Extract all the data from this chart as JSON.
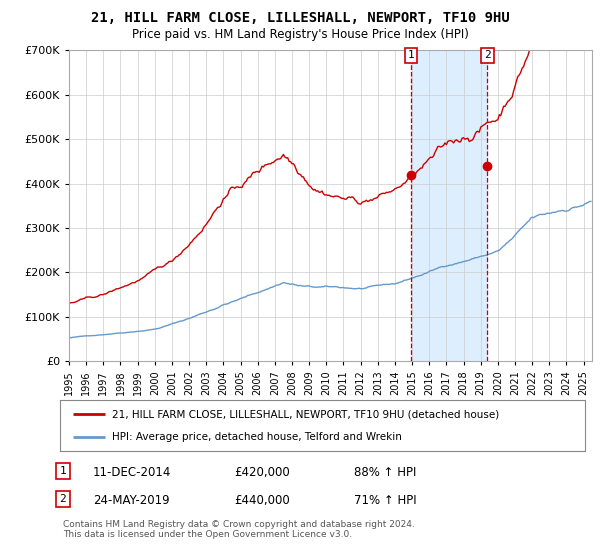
{
  "title": "21, HILL FARM CLOSE, LILLESHALL, NEWPORT, TF10 9HU",
  "subtitle": "Price paid vs. HM Land Registry's House Price Index (HPI)",
  "legend_line1": "21, HILL FARM CLOSE, LILLESHALL, NEWPORT, TF10 9HU (detached house)",
  "legend_line2": "HPI: Average price, detached house, Telford and Wrekin",
  "annotation1_date": "11-DEC-2014",
  "annotation1_price": "£420,000",
  "annotation1_hpi": "88% ↑ HPI",
  "annotation2_date": "24-MAY-2019",
  "annotation2_price": "£440,000",
  "annotation2_hpi": "71% ↑ HPI",
  "footer": "Contains HM Land Registry data © Crown copyright and database right 2024.\nThis data is licensed under the Open Government Licence v3.0.",
  "red_color": "#cc0000",
  "blue_color": "#6699cc",
  "shade_color": "#ddeeff",
  "grid_color": "#cccccc",
  "background_color": "#ffffff",
  "ylim": [
    0,
    700000
  ],
  "yticks": [
    0,
    100000,
    200000,
    300000,
    400000,
    500000,
    600000,
    700000
  ],
  "sale1_x": 2014.94,
  "sale1_y": 420000,
  "sale2_x": 2019.39,
  "sale2_y": 440000,
  "xmin": 1995.0,
  "xmax": 2025.5
}
